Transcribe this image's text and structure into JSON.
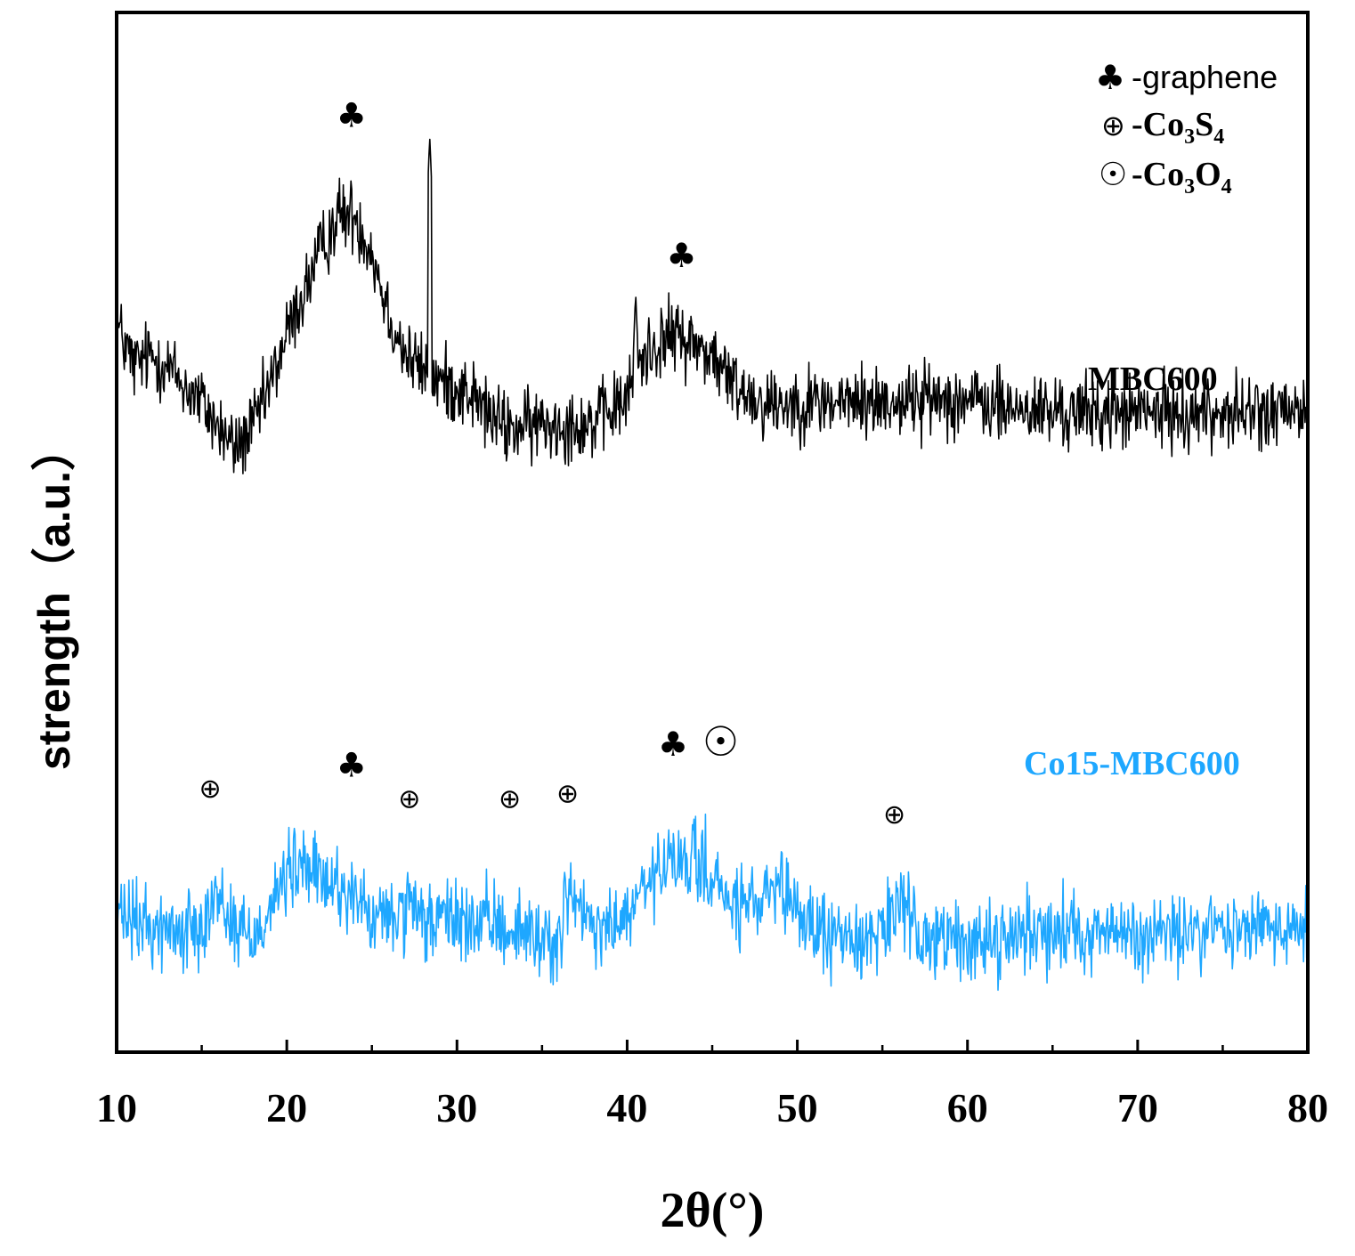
{
  "chart_data": {
    "type": "line",
    "title": "",
    "xlabel": "2θ(°)",
    "ylabel": "strength（a.u.）",
    "xlim": [
      10,
      80
    ],
    "xticks": [
      "10",
      "20",
      "30",
      "40",
      "50",
      "60",
      "70",
      "80"
    ],
    "yticks": [],
    "grid": false,
    "legend_position": "top-right",
    "legend": [
      {
        "symbol": "♣",
        "symbol_name": "club-icon",
        "text": "-graphene"
      },
      {
        "symbol": "⊕",
        "symbol_name": "circled-plus-icon",
        "text": "-Co3S4",
        "formula": [
          "-Co",
          "3",
          "S",
          "4"
        ]
      },
      {
        "symbol": "☉",
        "symbol_name": "sun-icon",
        "text": "-Co3O4",
        "formula": [
          "-Co",
          "3",
          "O",
          "4"
        ]
      }
    ],
    "series": [
      {
        "name": "MBC600",
        "color": "#000000",
        "baseline": 62,
        "noise": 2.2,
        "points": [
          [
            10,
            70
          ],
          [
            11,
            66
          ],
          [
            12,
            67
          ],
          [
            13,
            66
          ],
          [
            14,
            64
          ],
          [
            15,
            62.5
          ],
          [
            16,
            60
          ],
          [
            17,
            58
          ],
          [
            18,
            60
          ],
          [
            19,
            64
          ],
          [
            20,
            69
          ],
          [
            21,
            73
          ],
          [
            22,
            77
          ],
          [
            23,
            80.5
          ],
          [
            24,
            80.5
          ],
          [
            25,
            77
          ],
          [
            26,
            71
          ],
          [
            27,
            67
          ],
          [
            28,
            65.5
          ],
          [
            29,
            64.5
          ],
          [
            30,
            64
          ],
          [
            31,
            63
          ],
          [
            32,
            61
          ],
          [
            33,
            60
          ],
          [
            34,
            60
          ],
          [
            35,
            60.5
          ],
          [
            36,
            60.5
          ],
          [
            37,
            60.5
          ],
          [
            38,
            60.5
          ],
          [
            39,
            61.5
          ],
          [
            40,
            63
          ],
          [
            41,
            67
          ],
          [
            42,
            68.5
          ],
          [
            43,
            69
          ],
          [
            44,
            68
          ],
          [
            45,
            67
          ],
          [
            46,
            64.5
          ],
          [
            47,
            63.5
          ],
          [
            48,
            62.5
          ],
          [
            50,
            62.5
          ],
          [
            52,
            62.5
          ],
          [
            55,
            62.5
          ],
          [
            59,
            63
          ],
          [
            62,
            62
          ],
          [
            65,
            61.5
          ],
          [
            70,
            61.5
          ],
          [
            75,
            61.5
          ],
          [
            80,
            61.5
          ]
        ],
        "sharp_peaks": [
          [
            28.4,
            88
          ],
          [
            40.5,
            73
          ]
        ],
        "annotations": [
          {
            "x": 23.8,
            "symbol": "♣",
            "symbol_name": "club-icon",
            "label_y": 89
          },
          {
            "x": 43.2,
            "symbol": "♣",
            "symbol_name": "club-icon",
            "label_y": 75.5
          }
        ]
      },
      {
        "name": "Co15-MBC600",
        "color": "#1ea7ff",
        "baseline": 12,
        "noise": 2.4,
        "points": [
          [
            10,
            13
          ],
          [
            12,
            12
          ],
          [
            14,
            11.5
          ],
          [
            15,
            13
          ],
          [
            16,
            15
          ],
          [
            17,
            12
          ],
          [
            18,
            11
          ],
          [
            19,
            14
          ],
          [
            20,
            17
          ],
          [
            21,
            18
          ],
          [
            22,
            16.5
          ],
          [
            23,
            16
          ],
          [
            24,
            15
          ],
          [
            25,
            12.5
          ],
          [
            26,
            13
          ],
          [
            27,
            13.5
          ],
          [
            28,
            12.5
          ],
          [
            29,
            12.5
          ],
          [
            30,
            13
          ],
          [
            31,
            12
          ],
          [
            32,
            12.5
          ],
          [
            33,
            12
          ],
          [
            34,
            11.5
          ],
          [
            35,
            11
          ],
          [
            36,
            10.5
          ],
          [
            36.6,
            16
          ],
          [
            37,
            14
          ],
          [
            38,
            11.5
          ],
          [
            39,
            12
          ],
          [
            40,
            13
          ],
          [
            41,
            15.5
          ],
          [
            42,
            17.5
          ],
          [
            43,
            18
          ],
          [
            44,
            18.5
          ],
          [
            45,
            17
          ],
          [
            46,
            14
          ],
          [
            47,
            14
          ],
          [
            48,
            14.5
          ],
          [
            49,
            15
          ],
          [
            50,
            13.5
          ],
          [
            51,
            12
          ],
          [
            52,
            11
          ],
          [
            53,
            11
          ],
          [
            54,
            11
          ],
          [
            55,
            12
          ],
          [
            55.8,
            14
          ],
          [
            56.5,
            12.5
          ],
          [
            58,
            11
          ],
          [
            60,
            10.5
          ],
          [
            62,
            11
          ],
          [
            65,
            12
          ],
          [
            68,
            11.5
          ],
          [
            70,
            11
          ],
          [
            73,
            11.5
          ],
          [
            76,
            12
          ],
          [
            80,
            12
          ]
        ],
        "sharp_peaks": [],
        "annotations": [
          {
            "x": 15.5,
            "symbol": "⊕",
            "symbol_name": "circled-plus-icon",
            "label_y": 24.5
          },
          {
            "x": 23.8,
            "symbol": "♣",
            "symbol_name": "club-icon",
            "label_y": 26.5
          },
          {
            "x": 27.2,
            "symbol": "⊕",
            "symbol_name": "circled-plus-icon",
            "label_y": 23.5
          },
          {
            "x": 33.1,
            "symbol": "⊕",
            "symbol_name": "circled-plus-icon",
            "label_y": 23.5
          },
          {
            "x": 36.5,
            "symbol": "⊕",
            "symbol_name": "circled-plus-icon",
            "label_y": 24
          },
          {
            "x": 42.7,
            "symbol": "♣",
            "symbol_name": "club-icon",
            "label_y": 28.5
          },
          {
            "x": 45.5,
            "symbol": "☉",
            "symbol_name": "sun-icon",
            "label_y": 28.5
          },
          {
            "x": 55.7,
            "symbol": "⊕",
            "symbol_name": "circled-plus-icon",
            "label_y": 22
          }
        ]
      }
    ]
  }
}
